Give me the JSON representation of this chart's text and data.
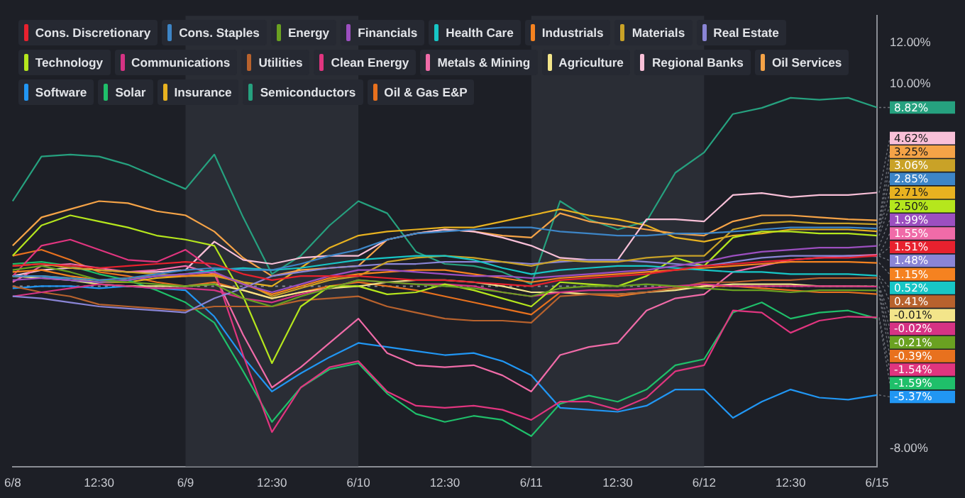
{
  "chart_data": {
    "type": "line",
    "legend": "top",
    "marker": "none",
    "line_style": "solid",
    "categories": [
      "6/8",
      null,
      null,
      "12:30",
      null,
      null,
      "6/9",
      null,
      null,
      "12:30",
      null,
      null,
      "6/10",
      null,
      null,
      "12:30",
      null,
      null,
      "6/11",
      null,
      null,
      "12:30",
      null,
      null,
      "6/12",
      null,
      null,
      "12:30",
      null,
      null,
      "6/15"
    ],
    "ylim": [
      -8.9,
      13.35
    ],
    "yticks": [
      {
        "value": 12,
        "label": "12.00%"
      },
      {
        "value": 10,
        "label": "10.00%"
      },
      {
        "value": -8,
        "label": "-8.00%"
      }
    ],
    "bands": [
      {
        "axis": "x",
        "from": "6/9",
        "to": "6/10",
        "color": "#2a2d35"
      },
      {
        "axis": "x",
        "from": "6/11",
        "to": "6/12",
        "color": "#2a2d35"
      }
    ],
    "ref_lines": [
      {
        "axis": "y",
        "value": 0,
        "color": "#8a8d94",
        "line_style": "dotted"
      }
    ],
    "series": [
      {
        "name": "Cons. Discretionary",
        "color": "#e8212e",
        "values": [
          1.0,
          1.1,
          1.0,
          0.9,
          1.0,
          1.1,
          1.2,
          1.1,
          0.6,
          0.3,
          0.5,
          0.5,
          0.5,
          0.4,
          0.3,
          0.3,
          0.2,
          0.1,
          0.0,
          0.3,
          0.4,
          0.5,
          0.6,
          0.8,
          1.0,
          1.1,
          1.2,
          1.3,
          1.4,
          1.4,
          1.51
        ],
        "value_labels": [
          null,
          null,
          null,
          null,
          null,
          null,
          null,
          null,
          null,
          null,
          null,
          null,
          null,
          null,
          null,
          null,
          null,
          null,
          null,
          null,
          null,
          null,
          null,
          null,
          null,
          null,
          null,
          null,
          null,
          null,
          "1.51%"
        ]
      },
      {
        "name": "Cons. Staples",
        "color": "#3d85c6",
        "values": [
          0.5,
          0.5,
          0.4,
          0.3,
          0.4,
          0.6,
          0.8,
          0.9,
          0.8,
          0.8,
          1.1,
          1.5,
          1.8,
          2.3,
          2.6,
          2.7,
          2.8,
          2.9,
          2.9,
          2.7,
          2.6,
          2.5,
          2.5,
          2.6,
          2.6,
          2.7,
          2.8,
          2.9,
          2.9,
          2.9,
          2.85
        ],
        "value_labels": [
          null,
          null,
          null,
          null,
          null,
          null,
          null,
          null,
          null,
          null,
          null,
          null,
          null,
          null,
          null,
          null,
          null,
          null,
          null,
          null,
          null,
          null,
          null,
          null,
          null,
          null,
          null,
          null,
          null,
          null,
          "2.85%"
        ]
      },
      {
        "name": "Energy",
        "color": "#6aa121",
        "values": [
          0.8,
          1.0,
          0.7,
          0.3,
          0.2,
          0.1,
          0.0,
          0.1,
          -0.6,
          -1.0,
          -0.5,
          -0.1,
          0.3,
          0.2,
          0.1,
          0.0,
          -0.1,
          -0.3,
          -0.5,
          -0.1,
          0.0,
          0.0,
          0.1,
          0.0,
          -0.1,
          -0.2,
          -0.2,
          -0.3,
          -0.2,
          -0.2,
          -0.21
        ],
        "value_labels": [
          null,
          null,
          null,
          null,
          null,
          null,
          null,
          null,
          null,
          null,
          null,
          null,
          null,
          null,
          null,
          null,
          null,
          null,
          null,
          null,
          null,
          null,
          null,
          null,
          null,
          null,
          null,
          null,
          null,
          null,
          "-0.21%"
        ]
      },
      {
        "name": "Financials",
        "color": "#9c4fc0",
        "values": [
          0.3,
          0.4,
          0.3,
          0.2,
          0.3,
          0.5,
          0.6,
          0.7,
          0.1,
          -0.3,
          0.1,
          0.5,
          0.8,
          0.8,
          0.7,
          0.6,
          0.5,
          0.5,
          0.4,
          0.5,
          0.6,
          0.7,
          0.8,
          1.0,
          1.2,
          1.5,
          1.7,
          1.8,
          1.9,
          1.9,
          1.99
        ],
        "value_labels": [
          null,
          null,
          null,
          null,
          null,
          null,
          null,
          null,
          null,
          null,
          null,
          null,
          null,
          null,
          null,
          null,
          null,
          null,
          null,
          null,
          null,
          null,
          null,
          null,
          null,
          null,
          null,
          null,
          null,
          null,
          "1.99%"
        ]
      },
      {
        "name": "Health Care",
        "color": "#17c6c6",
        "values": [
          0.5,
          0.5,
          0.3,
          0.2,
          0.3,
          0.5,
          0.6,
          0.8,
          0.9,
          0.8,
          0.9,
          1.1,
          1.3,
          1.4,
          1.5,
          1.5,
          1.3,
          0.9,
          0.6,
          0.8,
          0.9,
          1.0,
          1.0,
          0.9,
          0.8,
          0.7,
          0.7,
          0.6,
          0.6,
          0.6,
          0.52
        ],
        "value_labels": [
          null,
          null,
          null,
          null,
          null,
          null,
          null,
          null,
          null,
          null,
          null,
          null,
          null,
          null,
          null,
          null,
          null,
          null,
          null,
          null,
          null,
          null,
          null,
          null,
          null,
          null,
          null,
          null,
          null,
          null,
          "0.52%"
        ]
      },
      {
        "name": "Industrials",
        "color": "#f58220",
        "values": [
          0.7,
          0.8,
          0.5,
          0.3,
          0.4,
          0.5,
          0.5,
          0.6,
          0.1,
          -0.4,
          0.0,
          0.4,
          0.6,
          0.7,
          0.8,
          0.8,
          0.6,
          0.4,
          0.2,
          0.4,
          0.5,
          0.6,
          0.7,
          0.8,
          0.9,
          1.0,
          1.1,
          1.2,
          1.2,
          1.2,
          1.15
        ],
        "value_labels": [
          null,
          null,
          null,
          null,
          null,
          null,
          null,
          null,
          null,
          null,
          null,
          null,
          null,
          null,
          null,
          null,
          null,
          null,
          null,
          null,
          null,
          null,
          null,
          null,
          null,
          null,
          null,
          null,
          null,
          null,
          "1.15%"
        ]
      },
      {
        "name": "Materials",
        "color": "#c9a227",
        "values": [
          1.0,
          1.1,
          0.9,
          0.8,
          0.7,
          0.6,
          0.5,
          0.5,
          0.2,
          -0.5,
          -0.1,
          0.3,
          0.5,
          1.2,
          1.4,
          1.5,
          1.4,
          1.2,
          1.0,
          1.3,
          1.2,
          1.2,
          1.4,
          1.5,
          1.5,
          2.8,
          3.1,
          3.2,
          3.1,
          3.1,
          3.06
        ],
        "value_labels": [
          null,
          null,
          null,
          null,
          null,
          null,
          null,
          null,
          null,
          null,
          null,
          null,
          null,
          null,
          null,
          null,
          null,
          null,
          null,
          null,
          null,
          null,
          null,
          null,
          null,
          null,
          null,
          null,
          null,
          null,
          "3.06%"
        ]
      },
      {
        "name": "Real Estate",
        "color": "#8a85d6",
        "values": [
          -0.5,
          -0.6,
          -0.8,
          -1.0,
          -1.1,
          -1.2,
          -1.3,
          -0.6,
          -0.1,
          0.5,
          0.7,
          0.9,
          1.0,
          1.1,
          1.1,
          1.2,
          1.2,
          1.2,
          1.1,
          1.2,
          1.3,
          1.3,
          1.2,
          1.1,
          1.0,
          1.2,
          1.4,
          1.5,
          1.5,
          1.5,
          1.48
        ],
        "value_labels": [
          null,
          null,
          null,
          null,
          null,
          null,
          null,
          null,
          null,
          null,
          null,
          null,
          null,
          null,
          null,
          null,
          null,
          null,
          null,
          null,
          null,
          null,
          null,
          null,
          null,
          null,
          null,
          null,
          null,
          null,
          "1.48%"
        ]
      },
      {
        "name": "Technology",
        "color": "#b5e61d",
        "values": [
          1.5,
          3.0,
          3.5,
          3.2,
          2.9,
          2.5,
          2.3,
          2.0,
          -0.5,
          -3.8,
          -1.0,
          0.0,
          0.0,
          -0.4,
          -0.3,
          0.1,
          -0.2,
          -0.6,
          -1.0,
          0.2,
          0.1,
          0.0,
          0.5,
          1.4,
          1.0,
          2.4,
          2.7,
          2.7,
          2.6,
          2.6,
          2.5
        ],
        "value_labels": [
          null,
          null,
          null,
          null,
          null,
          null,
          null,
          null,
          null,
          null,
          null,
          null,
          null,
          null,
          null,
          null,
          null,
          null,
          null,
          null,
          null,
          null,
          null,
          null,
          null,
          null,
          null,
          null,
          null,
          null,
          "2.50%"
        ]
      },
      {
        "name": "Communications",
        "color": "#d63384",
        "values": [
          -0.5,
          -0.3,
          -0.1,
          0.1,
          0.0,
          -0.1,
          -0.1,
          -0.2,
          -0.6,
          -0.8,
          -0.4,
          -0.1,
          0.3,
          0.2,
          0.1,
          0.1,
          0.0,
          -0.3,
          -0.5,
          -0.3,
          -0.2,
          -0.2,
          -0.1,
          0.0,
          0.1,
          0.0,
          0.0,
          0.0,
          0.0,
          0.0,
          -0.02
        ],
        "value_labels": [
          null,
          null,
          null,
          null,
          null,
          null,
          null,
          null,
          null,
          null,
          null,
          null,
          null,
          null,
          null,
          null,
          null,
          null,
          null,
          null,
          null,
          null,
          null,
          null,
          null,
          null,
          null,
          null,
          null,
          null,
          "-0.02%"
        ]
      },
      {
        "name": "Utilities",
        "color": "#b8622d",
        "values": [
          0.0,
          -0.3,
          -0.5,
          -0.9,
          -1.0,
          -1.1,
          -1.2,
          -1.0,
          -1.0,
          -1.0,
          -0.7,
          -0.6,
          -0.5,
          -1.0,
          -1.3,
          -1.6,
          -1.7,
          -1.7,
          -1.8,
          -0.5,
          -0.4,
          -0.4,
          -0.3,
          -0.1,
          0.2,
          0.2,
          0.3,
          0.3,
          0.4,
          0.4,
          0.41
        ],
        "value_labels": [
          null,
          null,
          null,
          null,
          null,
          null,
          null,
          null,
          null,
          null,
          null,
          null,
          null,
          null,
          null,
          null,
          null,
          null,
          null,
          null,
          null,
          null,
          null,
          null,
          null,
          null,
          null,
          null,
          null,
          null,
          "0.41%"
        ]
      },
      {
        "name": "Clean Energy",
        "color": "#e0357f",
        "values": [
          0.5,
          2.0,
          2.3,
          1.8,
          1.3,
          1.2,
          1.8,
          0.8,
          -3.4,
          -7.2,
          -5.0,
          -4.0,
          -3.7,
          -5.2,
          -5.9,
          -6.0,
          -5.9,
          -6.1,
          -6.6,
          -5.7,
          -5.7,
          -6.1,
          -5.5,
          -4.2,
          -3.9,
          -1.2,
          -1.3,
          -2.3,
          -1.7,
          -1.5,
          -1.54
        ],
        "value_labels": [
          null,
          null,
          null,
          null,
          null,
          null,
          null,
          null,
          null,
          null,
          null,
          null,
          null,
          null,
          null,
          null,
          null,
          null,
          null,
          null,
          null,
          null,
          null,
          null,
          null,
          null,
          null,
          null,
          null,
          null,
          "-1.54%"
        ]
      },
      {
        "name": "Metals & Mining",
        "color": "#f06ba8",
        "values": [
          0.2,
          1.0,
          1.1,
          0.9,
          0.7,
          0.8,
          1.0,
          0.6,
          -2.4,
          -5.0,
          -4.0,
          -2.8,
          -1.6,
          -3.3,
          -3.9,
          -4.0,
          -3.9,
          -4.4,
          -5.2,
          -3.4,
          -3.0,
          -2.8,
          -1.2,
          -0.6,
          -0.4,
          0.7,
          1.0,
          1.3,
          1.4,
          1.5,
          1.55
        ],
        "value_labels": [
          null,
          null,
          null,
          null,
          null,
          null,
          null,
          null,
          null,
          null,
          null,
          null,
          null,
          null,
          null,
          null,
          null,
          null,
          null,
          null,
          null,
          null,
          null,
          null,
          null,
          null,
          null,
          null,
          null,
          null,
          "1.55%"
        ]
      },
      {
        "name": "Agriculture",
        "color": "#f3e58a",
        "values": [
          0.5,
          0.4,
          0.3,
          0.1,
          0.0,
          0.0,
          0.0,
          0.1,
          -0.2,
          -0.6,
          -0.3,
          -0.1,
          0.0,
          0.2,
          0.3,
          0.3,
          0.2,
          0.0,
          -0.3,
          -0.3,
          -0.4,
          -0.4,
          -0.3,
          -0.2,
          0.0,
          0.1,
          0.1,
          0.1,
          0.0,
          0.0,
          -0.01
        ],
        "value_labels": [
          null,
          null,
          null,
          null,
          null,
          null,
          null,
          null,
          null,
          null,
          null,
          null,
          null,
          null,
          null,
          null,
          null,
          null,
          null,
          null,
          null,
          null,
          null,
          null,
          null,
          null,
          null,
          null,
          null,
          null,
          "-0.01%"
        ]
      },
      {
        "name": "Regional Banks",
        "color": "#f9c0d8",
        "values": [
          0.5,
          0.8,
          0.9,
          0.8,
          0.7,
          0.7,
          0.8,
          2.2,
          1.3,
          1.1,
          1.4,
          1.5,
          1.5,
          2.3,
          2.6,
          2.8,
          2.7,
          2.4,
          2.0,
          1.4,
          1.3,
          1.3,
          3.3,
          3.3,
          3.2,
          4.5,
          4.6,
          4.4,
          4.5,
          4.5,
          4.62
        ],
        "value_labels": [
          null,
          null,
          null,
          null,
          null,
          null,
          null,
          null,
          null,
          null,
          null,
          null,
          null,
          null,
          null,
          null,
          null,
          null,
          null,
          null,
          null,
          null,
          null,
          null,
          null,
          null,
          null,
          null,
          null,
          null,
          "4.62%"
        ]
      },
      {
        "name": "Oil Services",
        "color": "#f5a347",
        "values": [
          2.0,
          3.4,
          3.8,
          4.2,
          4.1,
          3.7,
          3.5,
          2.7,
          1.4,
          0.5,
          0.8,
          0.9,
          1.0,
          2.3,
          2.6,
          2.8,
          2.7,
          2.5,
          2.4,
          3.6,
          3.2,
          3.0,
          2.8,
          2.6,
          2.5,
          3.2,
          3.5,
          3.5,
          3.4,
          3.3,
          3.25
        ],
        "value_labels": [
          null,
          null,
          null,
          null,
          null,
          null,
          null,
          null,
          null,
          null,
          null,
          null,
          null,
          null,
          null,
          null,
          null,
          null,
          null,
          null,
          null,
          null,
          null,
          null,
          null,
          null,
          null,
          null,
          null,
          null,
          "3.25%"
        ]
      },
      {
        "name": "Software",
        "color": "#2196f3",
        "values": [
          -0.1,
          0.0,
          0.0,
          -0.1,
          0.0,
          -0.1,
          -0.2,
          -1.5,
          -3.5,
          -5.2,
          -4.3,
          -3.5,
          -2.8,
          -3.0,
          -3.2,
          -3.4,
          -3.3,
          -3.7,
          -4.4,
          -6.0,
          -6.1,
          -6.2,
          -5.9,
          -5.1,
          -5.1,
          -6.5,
          -5.7,
          -5.1,
          -5.5,
          -5.6,
          -5.37
        ],
        "value_labels": [
          null,
          null,
          null,
          null,
          null,
          null,
          null,
          null,
          null,
          null,
          null,
          null,
          null,
          null,
          null,
          null,
          null,
          null,
          null,
          null,
          null,
          null,
          null,
          null,
          null,
          null,
          null,
          null,
          null,
          null,
          "-5.37%"
        ]
      },
      {
        "name": "Solar",
        "color": "#1fbf6a",
        "values": [
          1.1,
          1.2,
          1.0,
          0.6,
          0.3,
          -0.2,
          -0.8,
          -1.8,
          -4.2,
          -6.7,
          -5.0,
          -4.1,
          -3.8,
          -5.3,
          -6.3,
          -6.7,
          -6.4,
          -6.6,
          -7.4,
          -5.8,
          -5.4,
          -5.7,
          -5.1,
          -3.9,
          -3.6,
          -1.3,
          -0.8,
          -1.6,
          -1.3,
          -1.2,
          -1.59
        ],
        "value_labels": [
          null,
          null,
          null,
          null,
          null,
          null,
          null,
          null,
          null,
          null,
          null,
          null,
          null,
          null,
          null,
          null,
          null,
          null,
          null,
          null,
          null,
          null,
          null,
          null,
          null,
          null,
          null,
          null,
          null,
          null,
          "-1.59%"
        ]
      },
      {
        "name": "Insurance",
        "color": "#e8b220",
        "values": [
          0.5,
          0.5,
          0.4,
          0.2,
          0.2,
          0.4,
          0.5,
          0.6,
          0.2,
          0.0,
          0.9,
          1.9,
          2.5,
          2.7,
          2.8,
          2.9,
          2.9,
          3.2,
          3.5,
          3.8,
          3.5,
          3.3,
          3.0,
          2.4,
          2.2,
          2.5,
          2.6,
          2.8,
          2.8,
          2.8,
          2.71
        ],
        "value_labels": [
          null,
          null,
          null,
          null,
          null,
          null,
          null,
          null,
          null,
          null,
          null,
          null,
          null,
          null,
          null,
          null,
          null,
          null,
          null,
          null,
          null,
          null,
          null,
          null,
          null,
          null,
          null,
          null,
          null,
          null,
          "2.71%"
        ]
      },
      {
        "name": "Semiconductors",
        "color": "#26a17f",
        "values": [
          4.2,
          6.4,
          6.5,
          6.4,
          6.0,
          5.4,
          4.8,
          6.5,
          3.4,
          0.6,
          1.5,
          3.0,
          4.2,
          3.6,
          1.7,
          1.1,
          1.0,
          0.7,
          0.1,
          4.2,
          3.3,
          2.8,
          3.2,
          5.6,
          6.6,
          8.5,
          8.8,
          9.3,
          9.2,
          9.3,
          8.82
        ],
        "value_labels": [
          null,
          null,
          null,
          null,
          null,
          null,
          null,
          null,
          null,
          null,
          null,
          null,
          null,
          null,
          null,
          null,
          null,
          null,
          null,
          null,
          null,
          null,
          null,
          null,
          null,
          null,
          null,
          null,
          null,
          null,
          "8.82%"
        ]
      },
      {
        "name": "Oil & Gas E&P",
        "color": "#e8711e",
        "values": [
          1.5,
          1.8,
          1.3,
          0.7,
          0.5,
          0.2,
          0.0,
          0.2,
          -0.2,
          -0.6,
          -0.3,
          0.0,
          0.2,
          0.0,
          -0.2,
          -0.5,
          -0.8,
          -1.1,
          -1.4,
          -0.3,
          -0.4,
          -0.5,
          -0.3,
          -0.1,
          0.0,
          0.0,
          -0.1,
          -0.2,
          -0.3,
          -0.3,
          -0.39
        ],
        "value_labels": [
          null,
          null,
          null,
          null,
          null,
          null,
          null,
          null,
          null,
          null,
          null,
          null,
          null,
          null,
          null,
          null,
          null,
          null,
          null,
          null,
          null,
          null,
          null,
          null,
          null,
          null,
          null,
          null,
          null,
          null,
          "-0.39%"
        ]
      }
    ]
  }
}
